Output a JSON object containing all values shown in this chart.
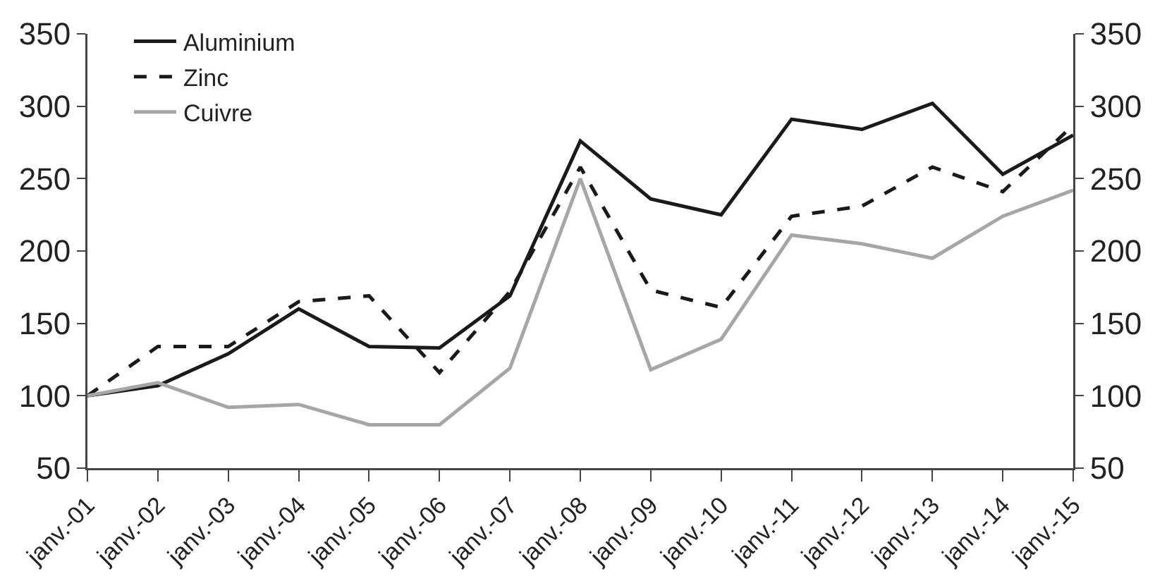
{
  "chart_data": {
    "type": "line",
    "categories": [
      "janv.-01",
      "janv.-02",
      "janv.-03",
      "janv.-04",
      "janv.-05",
      "janv.-06",
      "janv.-07",
      "janv.-08",
      "janv.-09",
      "janv.-10",
      "janv.-11",
      "janv.-12",
      "janv.-13",
      "janv.-14",
      "janv.-15"
    ],
    "series": [
      {
        "name": "Aluminium",
        "color": "#1a1a1a",
        "line_style": "solid",
        "values": [
          100,
          107,
          129,
          160,
          134,
          133,
          169,
          276,
          236,
          225,
          291,
          284,
          302,
          253,
          280
        ]
      },
      {
        "name": "Zinc",
        "color": "#1a1a1a",
        "line_style": "dashed",
        "values": [
          100,
          134,
          134,
          165,
          169,
          116,
          172,
          258,
          173,
          161,
          224,
          231,
          258,
          241,
          287
        ]
      },
      {
        "name": "Cuivre",
        "color": "#a6a6a6",
        "line_style": "solid",
        "values": [
          100,
          109,
          92,
          94,
          80,
          80,
          119,
          250,
          118,
          139,
          211,
          205,
          195,
          224,
          242
        ]
      }
    ],
    "ylim": [
      50,
      350
    ],
    "yticks": [
      50,
      100,
      150,
      200,
      250,
      300,
      350
    ],
    "y2lim": [
      50,
      350
    ],
    "y2ticks": [
      50,
      100,
      150,
      200,
      250,
      300,
      350
    ],
    "grid": false,
    "legend": "top left",
    "marker": "none"
  }
}
